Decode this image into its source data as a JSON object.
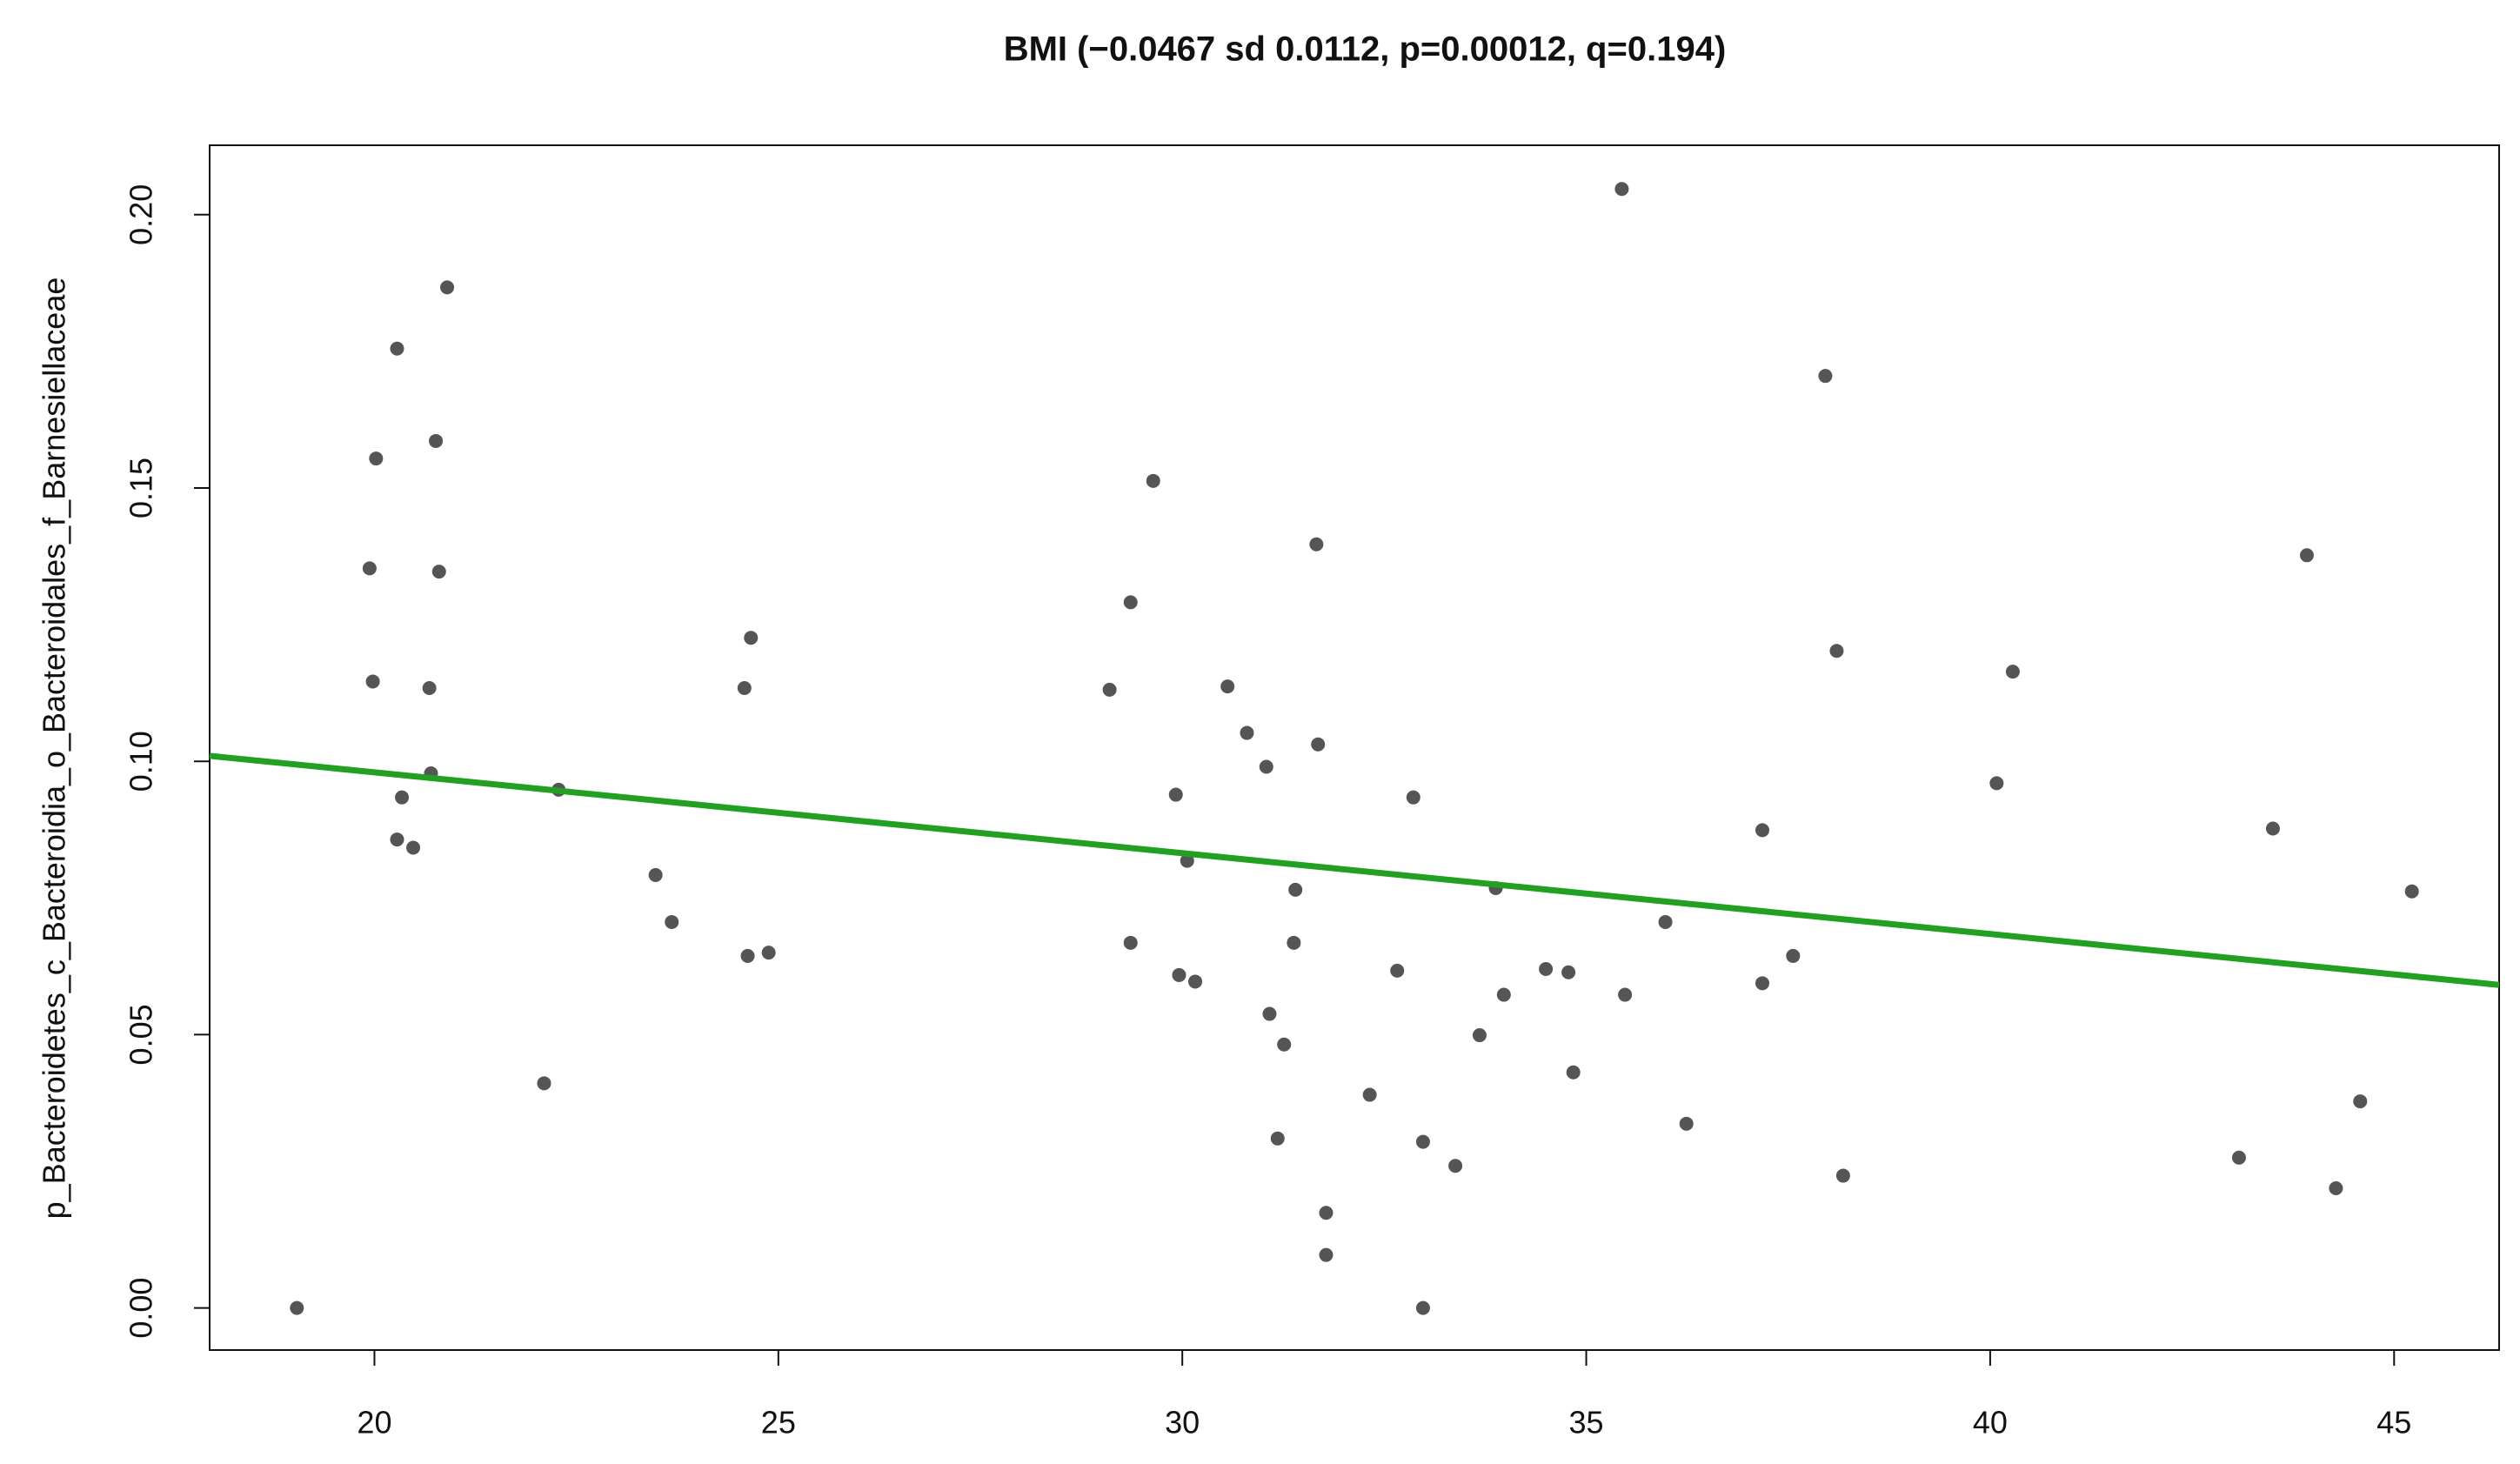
{
  "chart_data": {
    "type": "scatter",
    "title": "BMI (−0.0467 sd 0.0112, p=0.00012, q=0.194)",
    "y_label": "p_Bacteroidetes_c_Bacteroidia_o_Bacteroidales_f_Barnesiellaceae",
    "x": [
      19.04,
      19.94,
      20.02,
      19.98,
      20.28,
      20.34,
      20.28,
      20.48,
      20.68,
      20.7,
      20.76,
      20.8,
      20.9,
      22.1,
      22.28,
      23.48,
      23.68,
      24.58,
      24.66,
      24.62,
      24.88,
      29.1,
      29.36,
      29.36,
      29.64,
      29.92,
      29.96,
      30.06,
      30.16,
      30.56,
      30.8,
      31.04,
      31.08,
      31.18,
      31.26,
      31.38,
      31.4,
      31.66,
      31.68,
      31.78,
      31.78,
      32.32,
      32.66,
      32.86,
      32.98,
      32.98,
      33.38,
      33.68,
      33.88,
      33.98,
      34.5,
      34.78,
      34.84,
      35.44,
      35.48,
      35.98,
      36.24,
      37.18,
      37.18,
      37.56,
      37.96,
      38.1,
      38.18,
      40.08,
      40.28,
      43.08,
      43.5,
      43.92,
      44.28,
      44.58,
      45.22
    ],
    "values": [
      0,
      0.1353,
      0.1554,
      0.1146,
      0.1755,
      0.0934,
      0.0857,
      0.0842,
      0.1134,
      0.0978,
      0.1586,
      0.1347,
      0.1867,
      0.0411,
      0.0948,
      0.0792,
      0.0706,
      0.1134,
      0.1226,
      0.0644,
      0.065,
      0.1131,
      0.1291,
      0.0668,
      0.1513,
      0.0939,
      0.0609,
      0.0818,
      0.0597,
      0.1137,
      0.1052,
      0.099,
      0.0538,
      0.031,
      0.0482,
      0.0668,
      0.0765,
      0.1397,
      0.1031,
      0.0174,
      0.0097,
      0.039,
      0.0617,
      0.0934,
      0.0304,
      0,
      0.026,
      0.0499,
      0.0768,
      0.0573,
      0.062,
      0.0614,
      0.0431,
      0.2047,
      0.0573,
      0.0706,
      0.0337,
      0.0874,
      0.0594,
      0.0644,
      0.1705,
      0.1202,
      0.0242,
      0.096,
      0.1164,
      0.0275,
      0.0877,
      0.1377,
      0.0219,
      0.0378,
      0.0762
    ],
    "color": "#555555",
    "fit_line": {
      "x": [
        17.96,
        46.3
      ],
      "values": [
        0.101,
        0.0591
      ],
      "color": "#22a022"
    },
    "xlim": [
      17.96,
      46.3
    ],
    "ylim": [
      -0.0077,
      0.2127
    ],
    "xticks": [
      20,
      25,
      30,
      35,
      40,
      45
    ],
    "yticks": [
      {
        "value": 0,
        "label": "0.00"
      },
      0.05,
      {
        "value": 0.1,
        "label": "0.10"
      },
      0.15,
      {
        "value": 0.2,
        "label": "0.20"
      }
    ]
  }
}
